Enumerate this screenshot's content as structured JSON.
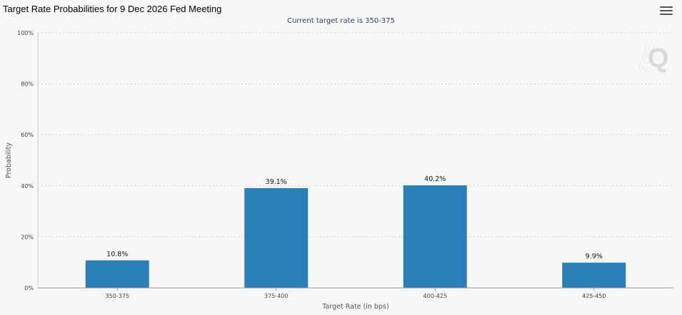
{
  "header": {
    "title": "Target Rate Probabilities for 9 Dec 2026 Fed Meeting",
    "subtitle": "Current target rate is 350-375",
    "menu_icon": "hamburger-menu-icon",
    "logo_icon": "q-logo-icon"
  },
  "colors": {
    "bar": "#2b7fb8",
    "grid": "#d8d8d8",
    "axis": "#999999",
    "background": "#f7f7f7"
  },
  "chart_data": {
    "type": "bar",
    "title": "Target Rate Probabilities for 9 Dec 2026 Fed Meeting",
    "subtitle": "Current target rate is 350-375",
    "xlabel": "Target Rate (in bps)",
    "ylabel": "Probability",
    "categories": [
      "350-375",
      "375-400",
      "400-425",
      "425-450"
    ],
    "values": [
      10.8,
      39.1,
      40.2,
      9.9
    ],
    "data_labels": [
      "10.8%",
      "39.1%",
      "40.2%",
      "9.9%"
    ],
    "ylim": [
      0,
      100
    ],
    "yticks": [
      0,
      20,
      40,
      60,
      80,
      100
    ],
    "ytick_labels": [
      "0%",
      "20%",
      "40%",
      "60%",
      "80%",
      "100%"
    ],
    "grid": true,
    "legend": "none"
  }
}
